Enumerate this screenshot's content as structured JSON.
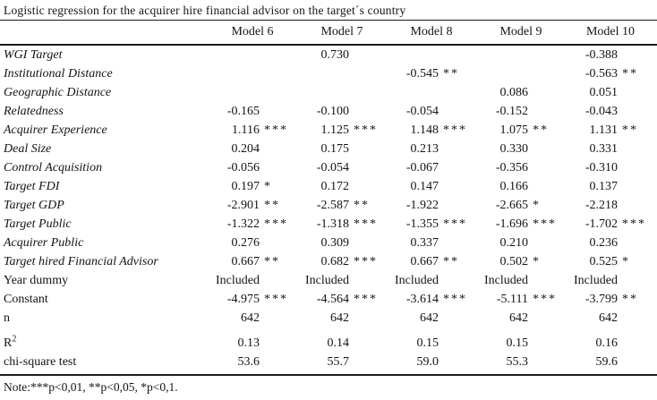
{
  "title": "Logistic regression for the acquirer hire financial advisor on the target´s country",
  "note": "Note:***p<0,01, **p<0,05, *p<0,1.",
  "table": {
    "columns": [
      "Model 6",
      "Model 7",
      "Model 8",
      "Model 9",
      "Model 10"
    ],
    "rows": [
      {
        "label": "WGI Target",
        "italic": true,
        "cells": [
          {
            "v": "",
            "s": ""
          },
          {
            "v": "0.730",
            "s": ""
          },
          {
            "v": "",
            "s": ""
          },
          {
            "v": "",
            "s": ""
          },
          {
            "v": "-0.388",
            "s": ""
          }
        ]
      },
      {
        "label": "Institutional Distance",
        "italic": true,
        "cells": [
          {
            "v": "",
            "s": ""
          },
          {
            "v": "",
            "s": ""
          },
          {
            "v": "-0.545",
            "s": "**"
          },
          {
            "v": "",
            "s": ""
          },
          {
            "v": "-0.563",
            "s": "**"
          }
        ]
      },
      {
        "label": "Geographic Distance",
        "italic": true,
        "cells": [
          {
            "v": "",
            "s": ""
          },
          {
            "v": "",
            "s": ""
          },
          {
            "v": "",
            "s": ""
          },
          {
            "v": "0.086",
            "s": ""
          },
          {
            "v": "0.051",
            "s": ""
          }
        ]
      },
      {
        "label": "Relatedness",
        "italic": true,
        "cells": [
          {
            "v": "-0.165",
            "s": ""
          },
          {
            "v": "-0.100",
            "s": ""
          },
          {
            "v": "-0.054",
            "s": ""
          },
          {
            "v": "-0.152",
            "s": ""
          },
          {
            "v": "-0.043",
            "s": ""
          }
        ]
      },
      {
        "label": "Acquirer Experience",
        "italic": true,
        "cells": [
          {
            "v": "1.116",
            "s": "***"
          },
          {
            "v": "1.125",
            "s": "***"
          },
          {
            "v": "1.148",
            "s": "***"
          },
          {
            "v": "1.075",
            "s": "**"
          },
          {
            "v": "1.131",
            "s": "**"
          }
        ]
      },
      {
        "label": "Deal Size",
        "italic": true,
        "cells": [
          {
            "v": "0.204",
            "s": ""
          },
          {
            "v": "0.175",
            "s": ""
          },
          {
            "v": "0.213",
            "s": ""
          },
          {
            "v": "0.330",
            "s": ""
          },
          {
            "v": "0.331",
            "s": ""
          }
        ]
      },
      {
        "label": "Control Acquisition",
        "italic": true,
        "cells": [
          {
            "v": "-0.056",
            "s": ""
          },
          {
            "v": "-0.054",
            "s": ""
          },
          {
            "v": "-0.067",
            "s": ""
          },
          {
            "v": "-0.356",
            "s": ""
          },
          {
            "v": "-0.310",
            "s": ""
          }
        ]
      },
      {
        "label": "Target FDI",
        "italic": true,
        "cells": [
          {
            "v": "0.197",
            "s": "*"
          },
          {
            "v": "0.172",
            "s": ""
          },
          {
            "v": "0.147",
            "s": ""
          },
          {
            "v": "0.166",
            "s": ""
          },
          {
            "v": "0.137",
            "s": ""
          }
        ]
      },
      {
        "label": "Target GDP",
        "italic": true,
        "cells": [
          {
            "v": "-2.901",
            "s": "**"
          },
          {
            "v": "-2.587",
            "s": "**"
          },
          {
            "v": "-1.922",
            "s": ""
          },
          {
            "v": "-2.665",
            "s": "*"
          },
          {
            "v": "-2.218",
            "s": ""
          }
        ]
      },
      {
        "label": "Target Public",
        "italic": true,
        "cells": [
          {
            "v": "-1.322",
            "s": "***"
          },
          {
            "v": "-1.318",
            "s": "***"
          },
          {
            "v": "-1.355",
            "s": "***"
          },
          {
            "v": "-1.696",
            "s": "***"
          },
          {
            "v": "-1.702",
            "s": "***"
          }
        ]
      },
      {
        "label": "Acquirer Public",
        "italic": true,
        "cells": [
          {
            "v": "0.276",
            "s": ""
          },
          {
            "v": "0.309",
            "s": ""
          },
          {
            "v": "0.337",
            "s": ""
          },
          {
            "v": "0.210",
            "s": ""
          },
          {
            "v": "0.236",
            "s": ""
          }
        ]
      },
      {
        "label": "Target hired Financial Advisor",
        "italic": true,
        "cells": [
          {
            "v": "0.667",
            "s": "**"
          },
          {
            "v": "0.682",
            "s": "***"
          },
          {
            "v": "0.667",
            "s": "**"
          },
          {
            "v": "0.502",
            "s": "*"
          },
          {
            "v": "0.525",
            "s": "*"
          }
        ]
      },
      {
        "label": "Year dummy",
        "italic": false,
        "cells": [
          {
            "v": "Included",
            "s": ""
          },
          {
            "v": "Included",
            "s": ""
          },
          {
            "v": "Included",
            "s": ""
          },
          {
            "v": "Included",
            "s": ""
          },
          {
            "v": "Included",
            "s": ""
          }
        ]
      },
      {
        "label": "Constant",
        "italic": false,
        "cells": [
          {
            "v": "-4.975",
            "s": "***"
          },
          {
            "v": "-4.564",
            "s": "***"
          },
          {
            "v": "-3.614",
            "s": "***"
          },
          {
            "v": "-5.111",
            "s": "***"
          },
          {
            "v": "-3.799",
            "s": "**"
          }
        ]
      },
      {
        "label": "n",
        "italic": false,
        "cells": [
          {
            "v": "642",
            "s": ""
          },
          {
            "v": "642",
            "s": ""
          },
          {
            "v": "642",
            "s": ""
          },
          {
            "v": "642",
            "s": ""
          },
          {
            "v": "642",
            "s": ""
          }
        ]
      },
      {
        "label": "R",
        "label_sup": "2",
        "italic": false,
        "gap_before": true,
        "cells": [
          {
            "v": "0.13",
            "s": ""
          },
          {
            "v": "0.14",
            "s": ""
          },
          {
            "v": "0.15",
            "s": ""
          },
          {
            "v": "0.15",
            "s": ""
          },
          {
            "v": "0.16",
            "s": ""
          }
        ]
      },
      {
        "label": "chi-square test",
        "italic": false,
        "cells": [
          {
            "v": "53.6",
            "s": ""
          },
          {
            "v": "55.7",
            "s": ""
          },
          {
            "v": "59.0",
            "s": ""
          },
          {
            "v": "55.3",
            "s": ""
          },
          {
            "v": "59.6",
            "s": ""
          }
        ]
      }
    ]
  }
}
